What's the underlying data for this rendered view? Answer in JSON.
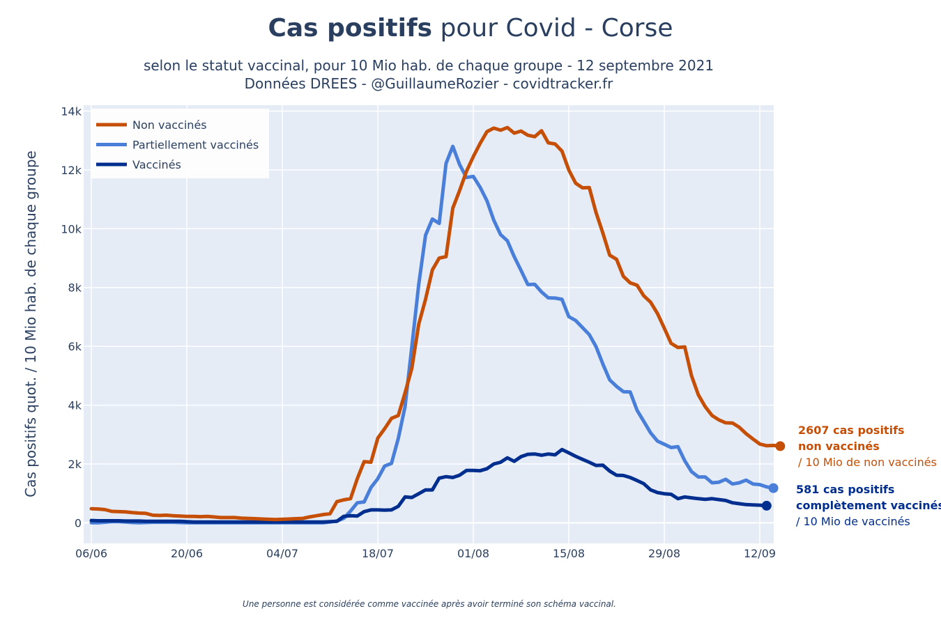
{
  "chart_data": {
    "type": "line",
    "title_bold": "Cas positifs",
    "title_rest": " pour Covid - Corse",
    "subtitle_line1": "selon le statut vaccinal, pour 10 Mio hab. de chaque groupe - 12 septembre 2021",
    "subtitle_line2": "Données DREES - @GuillaumeRozier - covidtracker.fr",
    "ylabel": "Cas positifs quot. / 10 Mio hab. de chaque groupe",
    "xlabel": "",
    "ylim": [
      -700,
      14200
    ],
    "y_ticks": [
      0,
      2000,
      4000,
      6000,
      8000,
      10000,
      12000,
      14000
    ],
    "y_tick_labels": [
      "0",
      "2k",
      "4k",
      "6k",
      "8k",
      "10k",
      "12k",
      "14k"
    ],
    "x_tick_labels": [
      "06/06",
      "20/06",
      "04/07",
      "18/07",
      "01/08",
      "15/08",
      "29/08",
      "12/09"
    ],
    "x_tick_days": [
      0,
      14,
      28,
      42,
      56,
      70,
      84,
      98
    ],
    "grid": true,
    "legend_position": "top-left",
    "background": "#e5ecf6",
    "series": [
      {
        "name": "Non vaccinés",
        "color": "#c54f06",
        "values": [
          480,
          470,
          450,
          390,
          380,
          370,
          350,
          330,
          320,
          260,
          250,
          260,
          240,
          230,
          220,
          220,
          210,
          220,
          200,
          180,
          180,
          180,
          160,
          150,
          140,
          130,
          120,
          110,
          120,
          130,
          140,
          150,
          200,
          240,
          280,
          310,
          720,
          780,
          820,
          1500,
          2080,
          2060,
          2880,
          3200,
          3550,
          3650,
          4420,
          5260,
          6750,
          7600,
          8600,
          9000,
          9050,
          10700,
          11300,
          11950,
          12450,
          12900,
          13300,
          13420,
          13350,
          13440,
          13250,
          13320,
          13180,
          13130,
          13330,
          12920,
          12880,
          12640,
          12000,
          11550,
          11390,
          11400,
          10550,
          9850,
          9100,
          8960,
          8380,
          8160,
          8080,
          7720,
          7500,
          7120,
          6620,
          6100,
          5960,
          5980,
          5000,
          4350,
          3950,
          3650,
          3500,
          3400,
          3390,
          3250,
          3030,
          2850,
          2680,
          2620,
          2630,
          2607
        ]
      },
      {
        "name": "Partiellement vaccinés",
        "color": "#4a7fd9",
        "values": [
          0,
          0,
          20,
          40,
          40,
          30,
          10,
          0,
          10,
          20,
          20,
          20,
          20,
          10,
          0,
          0,
          0,
          0,
          0,
          0,
          0,
          0,
          0,
          0,
          0,
          0,
          0,
          0,
          0,
          0,
          0,
          0,
          0,
          0,
          0,
          30,
          60,
          150,
          400,
          680,
          710,
          1200,
          1500,
          1930,
          2020,
          2870,
          3950,
          6000,
          8100,
          9780,
          10330,
          10180,
          12220,
          12800,
          12180,
          11740,
          11780,
          11410,
          10950,
          10290,
          9800,
          9590,
          9050,
          8580,
          8100,
          8110,
          7850,
          7650,
          7640,
          7600,
          7010,
          6880,
          6640,
          6400,
          5990,
          5400,
          4860,
          4640,
          4460,
          4450,
          3830,
          3450,
          3060,
          2780,
          2670,
          2560,
          2590,
          2110,
          1740,
          1560,
          1560,
          1360,
          1380,
          1480,
          1320,
          1360,
          1450,
          1320,
          1300,
          1220,
          1180
        ]
      },
      {
        "name": "Vaccinés",
        "color": "#002e8e",
        "values": [
          80,
          70,
          70,
          70,
          70,
          60,
          60,
          60,
          50,
          50,
          50,
          50,
          50,
          50,
          40,
          30,
          30,
          30,
          30,
          30,
          30,
          30,
          30,
          30,
          30,
          30,
          30,
          30,
          30,
          30,
          30,
          30,
          30,
          30,
          30,
          40,
          50,
          220,
          240,
          230,
          380,
          440,
          440,
          430,
          440,
          560,
          880,
          860,
          990,
          1120,
          1120,
          1520,
          1570,
          1540,
          1620,
          1780,
          1780,
          1770,
          1840,
          2000,
          2060,
          2210,
          2090,
          2250,
          2330,
          2340,
          2300,
          2340,
          2310,
          2490,
          2380,
          2260,
          2160,
          2060,
          1950,
          1960,
          1760,
          1620,
          1610,
          1540,
          1440,
          1330,
          1120,
          1030,
          990,
          970,
          820,
          880,
          850,
          820,
          800,
          820,
          790,
          760,
          680,
          650,
          620,
          610,
          600,
          581
        ]
      }
    ],
    "annotations": [
      {
        "line1": "2607 cas positifs",
        "line2": "non vaccinés",
        "line3": "/ 10 Mio de non vaccinés",
        "color": "#c54f06"
      },
      {
        "line1": "581 cas positifs",
        "line2": "complètement vaccinés",
        "line3": "/ 10 Mio de vaccinés",
        "color": "#002e8e"
      }
    ],
    "footnote": "Une personne est considérée comme vaccinée après avoir terminé son schéma vaccinal."
  }
}
